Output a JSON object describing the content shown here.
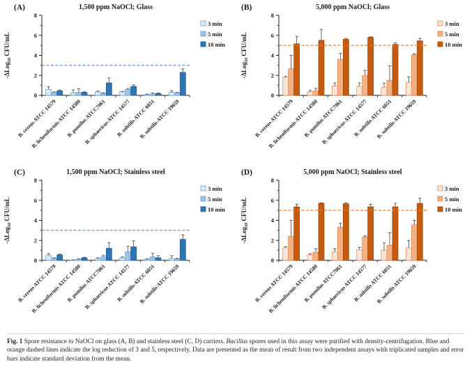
{
  "caption": {
    "label": "Fig. 1",
    "part1": " Spore resistance to NaOCl on glass (A, B) and stainless steel (C, D) carriers. ",
    "genus_italic": "Bacillus",
    "part2": " spores used in this assay were purified with density-centrifugation. Blue and orange dashed lines indicate the log reduction of 3 and 5, respectively. Data are presented as the mean of result from two independent assays with triplicated samples and error bars indicate standard deviation from the mean."
  },
  "palettes": {
    "blue": {
      "fills": [
        "#dce9f7",
        "#9dc3e6",
        "#2e75b6"
      ],
      "strokes": [
        "#6d9ed1",
        "#6d9ed1",
        "#24598c"
      ],
      "threshold": "#6b8fd0"
    },
    "orange": {
      "fills": [
        "#fbe5d6",
        "#f4b183",
        "#c55a11"
      ],
      "strokes": [
        "#e08b55",
        "#e08b55",
        "#9c4709"
      ],
      "threshold": "#ed7d31"
    },
    "error_bar": "#404040",
    "axis": "#1a1a1a"
  },
  "chart_data": [
    {
      "panel_label": "(A)",
      "type": "bar",
      "title": "1,500 ppm NaOCl; Glass",
      "palette": "blue",
      "threshold_value": 3,
      "ylim": [
        0,
        8
      ],
      "yticks": [
        0,
        2,
        4,
        6,
        8
      ],
      "minor_yticks": [
        1,
        3,
        5,
        7
      ],
      "grid": false,
      "legend_position": "right",
      "ylabel": {
        "pre": "-ΔLog",
        "sub": "10",
        "post": " CFU/mL"
      },
      "categories": [
        "B. cereus ATCC 14579",
        "B. licheniformis ATCC 14580",
        "B. pumilus ATCC7061",
        "B. sphaericus ATCC 14577",
        "B. subtilis ATCC 6051",
        "B. subtilis ATCC 19659"
      ],
      "series": [
        {
          "name": "3 min",
          "values": [
            0.6,
            0.25,
            0.35,
            0.35,
            0.08,
            0.3
          ],
          "errors": [
            0.25,
            0.3,
            0.08,
            0.05,
            0.04,
            0.15
          ]
        },
        {
          "name": "5 min",
          "values": [
            0.3,
            0.3,
            0.2,
            0.6,
            0.15,
            0.25
          ],
          "errors": [
            0.05,
            0.35,
            0.05,
            0.1,
            0.08,
            0.05
          ]
        },
        {
          "name": "10 min",
          "values": [
            0.45,
            0.3,
            1.25,
            0.9,
            0.18,
            2.3
          ],
          "errors": [
            0.08,
            0.05,
            0.5,
            0.15,
            0.05,
            0.35
          ]
        }
      ]
    },
    {
      "panel_label": "(B)",
      "type": "bar",
      "title": "5,000 ppm NaOCl; Glass",
      "palette": "orange",
      "threshold_value": 5,
      "ylim": [
        0,
        8
      ],
      "yticks": [
        0,
        2,
        4,
        6,
        8
      ],
      "minor_yticks": [
        1,
        3,
        5,
        7
      ],
      "grid": false,
      "legend_position": "right",
      "ylabel": {
        "pre": "-ΔLog",
        "sub": "10",
        "post": " CFU/mL"
      },
      "categories": [
        "B. cereus ATCC 14579",
        "B. licheniformis ATCC 14580",
        "B. pumilus ATCC7061",
        "B. sphaericus ATCC 14577",
        "B. subtilis ATCC 6051",
        "B. subtilis ATCC 19659"
      ],
      "series": [
        {
          "name": "3 min",
          "values": [
            1.8,
            0.35,
            0.95,
            0.9,
            0.8,
            1.3
          ],
          "errors": [
            0.1,
            0.15,
            0.3,
            0.35,
            0.4,
            0.55
          ]
        },
        {
          "name": "5 min",
          "values": [
            2.65,
            0.45,
            3.6,
            2.0,
            1.5,
            4.05
          ],
          "errors": [
            1.35,
            0.25,
            0.6,
            0.5,
            1.45,
            0.1
          ]
        },
        {
          "name": "10 min",
          "values": [
            5.15,
            5.5,
            5.6,
            5.8,
            5.1,
            5.45
          ],
          "errors": [
            0.75,
            1.1,
            0.1,
            0.05,
            0.15,
            0.25
          ]
        }
      ]
    },
    {
      "panel_label": "(C)",
      "type": "bar",
      "title": "1,500 ppm NaOCl; Stainless steel",
      "palette": "blue",
      "threshold_value": 3,
      "ylim": [
        0,
        8
      ],
      "yticks": [
        0,
        2,
        4,
        6,
        8
      ],
      "minor_yticks": [
        1,
        3,
        5,
        7
      ],
      "grid": false,
      "legend_position": "right",
      "ylabel": {
        "pre": "-ΔLog",
        "sub": "10",
        "post": " CFU/mL"
      },
      "categories": [
        "B. cereus ATCC 14579",
        "B. licheniformis ATCC 14580",
        "B. pumilus ATCC7061",
        "B. sphaericus ATCC 14577",
        "B. subtilis ATCC 6051",
        "B. subtilis ATCC 19659"
      ],
      "series": [
        {
          "name": "3 min",
          "values": [
            0.5,
            0.03,
            0.15,
            0.25,
            0.1,
            0.2
          ],
          "errors": [
            0.15,
            0.02,
            0.1,
            0.1,
            0.05,
            0.25
          ]
        },
        {
          "name": "5 min",
          "values": [
            0.2,
            0.1,
            0.35,
            0.85,
            0.35,
            0.15
          ],
          "errors": [
            0.05,
            0.05,
            0.15,
            0.55,
            0.35,
            0.05
          ]
        },
        {
          "name": "10 min",
          "values": [
            0.55,
            0.25,
            1.2,
            1.35,
            0.25,
            2.1
          ],
          "errors": [
            0.08,
            0.05,
            0.55,
            0.6,
            0.2,
            0.45
          ]
        }
      ]
    },
    {
      "panel_label": "(D)",
      "type": "bar",
      "title": "5,000 ppm NaOCl; Stainless steel",
      "palette": "orange",
      "threshold_value": 5,
      "ylim": [
        0,
        8
      ],
      "yticks": [
        0,
        2,
        4,
        6,
        8
      ],
      "minor_yticks": [
        1,
        3,
        5,
        7
      ],
      "grid": false,
      "legend_position": "right",
      "ylabel": {
        "pre": "-ΔLog",
        "sub": "10",
        "post": " CFU/mL"
      },
      "categories": [
        "B. cereus ATCC 14579",
        "B. licheniformis ATCC 14580",
        "B. pumilus ATCC7061",
        "B. sphaericus ATCC 14577",
        "B. subtilis ATCC 6051",
        "B. subtilis ATCC 19659"
      ],
      "series": [
        {
          "name": "3 min",
          "values": [
            1.25,
            0.55,
            0.85,
            1.05,
            1.0,
            1.25
          ],
          "errors": [
            0.1,
            0.1,
            0.3,
            0.25,
            0.75,
            0.75
          ]
        },
        {
          "name": "5 min",
          "values": [
            2.4,
            0.8,
            3.3,
            2.35,
            1.5,
            3.55
          ],
          "errors": [
            1.6,
            0.35,
            0.4,
            0.1,
            1.25,
            0.45
          ]
        },
        {
          "name": "10 min",
          "values": [
            5.35,
            5.7,
            5.65,
            5.35,
            5.35,
            5.7
          ],
          "errors": [
            0.25,
            0.05,
            0.1,
            0.25,
            0.35,
            0.5
          ]
        }
      ]
    }
  ]
}
